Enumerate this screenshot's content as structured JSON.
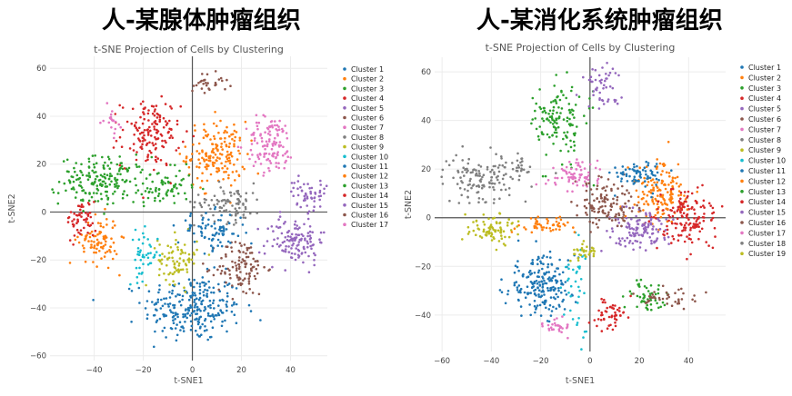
{
  "headings": [
    "人-某腺体肿瘤组织",
    "人-某消化系统肿瘤组织"
  ],
  "chart_data": [
    {
      "type": "scatter",
      "title": "t-SNE Projection of Cells by Clustering",
      "xlabel": "t-SNE1",
      "ylabel": "t-SNE2",
      "xlim": [
        -58,
        55
      ],
      "ylim": [
        -62,
        65
      ],
      "xticks": [
        -40,
        -20,
        0,
        20,
        40
      ],
      "yticks": [
        -60,
        -40,
        -20,
        0,
        20,
        40,
        60
      ],
      "series": [
        {
          "name": "Cluster 1",
          "color": "#1f77b4",
          "cx": 0,
          "cy": -40,
          "sx": 10,
          "sy": 7,
          "n": 260
        },
        {
          "name": "Cluster 2",
          "color": "#ff7f0e",
          "cx": 10,
          "cy": 24,
          "sx": 6,
          "sy": 7,
          "n": 170
        },
        {
          "name": "Cluster 3",
          "color": "#2ca02c",
          "cx": -36,
          "cy": 13,
          "sx": 9,
          "sy": 5,
          "n": 190
        },
        {
          "name": "Cluster 4",
          "color": "#d62728",
          "cx": -17,
          "cy": 33,
          "sx": 6,
          "sy": 7,
          "n": 150
        },
        {
          "name": "Cluster 5",
          "color": "#9467bd",
          "cx": 42,
          "cy": -12,
          "sx": 6,
          "sy": 5,
          "n": 130
        },
        {
          "name": "Cluster 6",
          "color": "#8c564b",
          "cx": 20,
          "cy": -23,
          "sx": 5,
          "sy": 6,
          "n": 110
        },
        {
          "name": "Cluster 7",
          "color": "#e377c2",
          "cx": 32,
          "cy": 28,
          "sx": 5,
          "sy": 6,
          "n": 120
        },
        {
          "name": "Cluster 8",
          "color": "#7f7f7f",
          "cx": 15,
          "cy": 4,
          "sx": 7,
          "sy": 4,
          "n": 90
        },
        {
          "name": "Cluster 9",
          "color": "#bcbd22",
          "cx": -6,
          "cy": -20,
          "sx": 4,
          "sy": 5,
          "n": 80
        },
        {
          "name": "Cluster 10",
          "color": "#17becf",
          "cx": -20,
          "cy": -18,
          "sx": 3,
          "sy": 5,
          "n": 45
        },
        {
          "name": "Cluster 11",
          "color": "#1f77b4",
          "cx": 8,
          "cy": -8,
          "sx": 7,
          "sy": 4,
          "n": 80
        },
        {
          "name": "Cluster 12",
          "color": "#ff7f0e",
          "cx": -38,
          "cy": -12,
          "sx": 4,
          "sy": 5,
          "n": 90
        },
        {
          "name": "Cluster 13",
          "color": "#2ca02c",
          "cx": -10,
          "cy": 10,
          "sx": 5,
          "sy": 4,
          "n": 60
        },
        {
          "name": "Cluster 14",
          "color": "#d62728",
          "cx": -45,
          "cy": -3,
          "sx": 3,
          "sy": 4,
          "n": 55
        },
        {
          "name": "Cluster 15",
          "color": "#9467bd",
          "cx": 47,
          "cy": 8,
          "sx": 4,
          "sy": 3,
          "n": 50
        },
        {
          "name": "Cluster 16",
          "color": "#8c564b",
          "cx": 7,
          "cy": 54,
          "sx": 4,
          "sy": 2,
          "n": 30
        },
        {
          "name": "Cluster 17",
          "color": "#e377c2",
          "cx": -33,
          "cy": 38,
          "sx": 1.5,
          "sy": 3,
          "n": 20
        }
      ]
    },
    {
      "type": "scatter",
      "title": "t-SNE Projection of Cells by Clustering",
      "xlabel": "t-SNE1",
      "ylabel": "t-SNE2",
      "xlim": [
        -63,
        55
      ],
      "ylim": [
        -55,
        66
      ],
      "xticks": [
        -60,
        -40,
        -20,
        0,
        20,
        40
      ],
      "yticks": [
        -40,
        -20,
        0,
        20,
        40,
        60
      ],
      "series": [
        {
          "name": "Cluster 1",
          "color": "#1f77b4",
          "cx": -20,
          "cy": -28,
          "sx": 7,
          "sy": 6,
          "n": 200
        },
        {
          "name": "Cluster 2",
          "color": "#ff7f0e",
          "cx": 28,
          "cy": 10,
          "sx": 6,
          "sy": 6,
          "n": 150
        },
        {
          "name": "Cluster 3",
          "color": "#2ca02c",
          "cx": -12,
          "cy": 40,
          "sx": 5,
          "sy": 8,
          "n": 130
        },
        {
          "name": "Cluster 4",
          "color": "#d62728",
          "cx": 40,
          "cy": 0,
          "sx": 6,
          "sy": 6,
          "n": 150
        },
        {
          "name": "Cluster 5",
          "color": "#9467bd",
          "cx": 20,
          "cy": -5,
          "sx": 6,
          "sy": 4,
          "n": 120
        },
        {
          "name": "Cluster 6",
          "color": "#8c564b",
          "cx": 6,
          "cy": 5,
          "sx": 6,
          "sy": 5,
          "n": 120
        },
        {
          "name": "Cluster 7",
          "color": "#e377c2",
          "cx": -5,
          "cy": 18,
          "sx": 5,
          "sy": 3,
          "n": 70
        },
        {
          "name": "Cluster 8",
          "color": "#7f7f7f",
          "cx": -44,
          "cy": 16,
          "sx": 8,
          "sy": 5,
          "n": 130
        },
        {
          "name": "Cluster 9",
          "color": "#bcbd22",
          "cx": -40,
          "cy": -4,
          "sx": 5,
          "sy": 3,
          "n": 80
        },
        {
          "name": "Cluster 10",
          "color": "#17becf",
          "cx": -6,
          "cy": -30,
          "sx": 2,
          "sy": 10,
          "n": 40
        },
        {
          "name": "Cluster 11",
          "color": "#1f77b4",
          "cx": 20,
          "cy": 18,
          "sx": 5,
          "sy": 3,
          "n": 70
        },
        {
          "name": "Cluster 12",
          "color": "#ff7f0e",
          "cx": -20,
          "cy": -3,
          "sx": 6,
          "sy": 2,
          "n": 50
        },
        {
          "name": "Cluster 13",
          "color": "#2ca02c",
          "cx": 22,
          "cy": -32,
          "sx": 4,
          "sy": 4,
          "n": 50
        },
        {
          "name": "Cluster 14",
          "color": "#d62728",
          "cx": 8,
          "cy": -40,
          "sx": 4,
          "sy": 3,
          "n": 50
        },
        {
          "name": "Cluster 15",
          "color": "#9467bd",
          "cx": 5,
          "cy": 54,
          "sx": 4,
          "sy": 5,
          "n": 50
        },
        {
          "name": "Cluster 16",
          "color": "#8c564b",
          "cx": 32,
          "cy": -33,
          "sx": 6,
          "sy": 2,
          "n": 40
        },
        {
          "name": "Cluster 17",
          "color": "#e377c2",
          "cx": -14,
          "cy": -44,
          "sx": 3,
          "sy": 2,
          "n": 30
        },
        {
          "name": "Cluster 18",
          "color": "#7f7f7f",
          "cx": -28,
          "cy": 20,
          "sx": 1.5,
          "sy": 3,
          "n": 20
        },
        {
          "name": "Cluster 19",
          "color": "#bcbd22",
          "cx": -2,
          "cy": -14,
          "sx": 3,
          "sy": 2,
          "n": 30
        }
      ]
    }
  ]
}
